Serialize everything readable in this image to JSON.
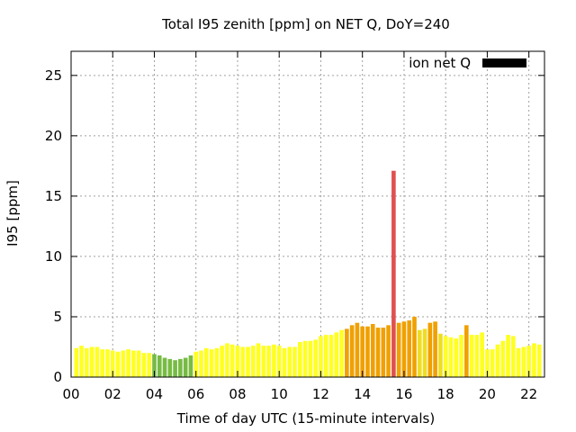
{
  "chart_data": {
    "type": "bar",
    "title": "Total I95 zenith [ppm] on NET Q, DoY=240",
    "xlabel": "Time of day UTC (15-minute intervals)",
    "ylabel": "I95 [ppm]",
    "legend": {
      "label": "ion net Q",
      "position": "top-right",
      "color": "#000000"
    },
    "grid": true,
    "xlim": [
      0,
      22.75
    ],
    "ylim": [
      0,
      27
    ],
    "x_ticks": [
      {
        "value": 0,
        "label": "00"
      },
      {
        "value": 2,
        "label": "02"
      },
      {
        "value": 4,
        "label": "04"
      },
      {
        "value": 6,
        "label": "06"
      },
      {
        "value": 8,
        "label": "08"
      },
      {
        "value": 10,
        "label": "10"
      },
      {
        "value": 12,
        "label": "12"
      },
      {
        "value": 14,
        "label": "14"
      },
      {
        "value": 16,
        "label": "16"
      },
      {
        "value": 18,
        "label": "18"
      },
      {
        "value": 20,
        "label": "20"
      },
      {
        "value": 22,
        "label": "22"
      }
    ],
    "y_ticks": [
      {
        "value": 0,
        "label": "0"
      },
      {
        "value": 5,
        "label": "5"
      },
      {
        "value": 10,
        "label": "10"
      },
      {
        "value": 15,
        "label": "15"
      },
      {
        "value": 20,
        "label": "20"
      },
      {
        "value": 25,
        "label": "25"
      }
    ],
    "colors": {
      "green": "#77bb44",
      "yellow": "#ffff22",
      "lightorange": "#eedd22",
      "orange": "#f0a000",
      "red": "#e05050"
    },
    "bar_interval_hours": 0.25,
    "bars": [
      {
        "x": 0.25,
        "value": 2.4,
        "color": "yellow"
      },
      {
        "x": 0.5,
        "value": 2.6,
        "color": "yellow"
      },
      {
        "x": 0.75,
        "value": 2.4,
        "color": "yellow"
      },
      {
        "x": 1.0,
        "value": 2.5,
        "color": "yellow"
      },
      {
        "x": 1.25,
        "value": 2.5,
        "color": "yellow"
      },
      {
        "x": 1.5,
        "value": 2.3,
        "color": "yellow"
      },
      {
        "x": 1.75,
        "value": 2.3,
        "color": "yellow"
      },
      {
        "x": 2.0,
        "value": 2.2,
        "color": "yellow"
      },
      {
        "x": 2.25,
        "value": 2.1,
        "color": "yellow"
      },
      {
        "x": 2.5,
        "value": 2.2,
        "color": "yellow"
      },
      {
        "x": 2.75,
        "value": 2.3,
        "color": "yellow"
      },
      {
        "x": 3.0,
        "value": 2.2,
        "color": "yellow"
      },
      {
        "x": 3.25,
        "value": 2.2,
        "color": "yellow"
      },
      {
        "x": 3.5,
        "value": 2.0,
        "color": "yellow"
      },
      {
        "x": 3.75,
        "value": 2.0,
        "color": "yellow"
      },
      {
        "x": 4.0,
        "value": 1.9,
        "color": "green"
      },
      {
        "x": 4.25,
        "value": 1.8,
        "color": "green"
      },
      {
        "x": 4.5,
        "value": 1.6,
        "color": "green"
      },
      {
        "x": 4.75,
        "value": 1.5,
        "color": "green"
      },
      {
        "x": 5.0,
        "value": 1.4,
        "color": "green"
      },
      {
        "x": 5.25,
        "value": 1.5,
        "color": "green"
      },
      {
        "x": 5.5,
        "value": 1.6,
        "color": "green"
      },
      {
        "x": 5.75,
        "value": 1.8,
        "color": "green"
      },
      {
        "x": 6.0,
        "value": 2.1,
        "color": "yellow"
      },
      {
        "x": 6.25,
        "value": 2.2,
        "color": "yellow"
      },
      {
        "x": 6.5,
        "value": 2.4,
        "color": "yellow"
      },
      {
        "x": 6.75,
        "value": 2.3,
        "color": "yellow"
      },
      {
        "x": 7.0,
        "value": 2.4,
        "color": "yellow"
      },
      {
        "x": 7.25,
        "value": 2.6,
        "color": "yellow"
      },
      {
        "x": 7.5,
        "value": 2.8,
        "color": "yellow"
      },
      {
        "x": 7.75,
        "value": 2.7,
        "color": "yellow"
      },
      {
        "x": 8.0,
        "value": 2.6,
        "color": "yellow"
      },
      {
        "x": 8.25,
        "value": 2.5,
        "color": "yellow"
      },
      {
        "x": 8.5,
        "value": 2.5,
        "color": "yellow"
      },
      {
        "x": 8.75,
        "value": 2.6,
        "color": "yellow"
      },
      {
        "x": 9.0,
        "value": 2.8,
        "color": "yellow"
      },
      {
        "x": 9.25,
        "value": 2.6,
        "color": "yellow"
      },
      {
        "x": 9.5,
        "value": 2.6,
        "color": "yellow"
      },
      {
        "x": 9.75,
        "value": 2.7,
        "color": "yellow"
      },
      {
        "x": 10.0,
        "value": 2.6,
        "color": "yellow"
      },
      {
        "x": 10.25,
        "value": 2.4,
        "color": "yellow"
      },
      {
        "x": 10.5,
        "value": 2.5,
        "color": "yellow"
      },
      {
        "x": 10.75,
        "value": 2.5,
        "color": "yellow"
      },
      {
        "x": 11.0,
        "value": 2.9,
        "color": "yellow"
      },
      {
        "x": 11.25,
        "value": 3.0,
        "color": "yellow"
      },
      {
        "x": 11.5,
        "value": 3.0,
        "color": "yellow"
      },
      {
        "x": 11.75,
        "value": 3.1,
        "color": "yellow"
      },
      {
        "x": 12.0,
        "value": 3.4,
        "color": "yellow"
      },
      {
        "x": 12.25,
        "value": 3.5,
        "color": "yellow"
      },
      {
        "x": 12.5,
        "value": 3.5,
        "color": "yellow"
      },
      {
        "x": 12.75,
        "value": 3.7,
        "color": "yellow"
      },
      {
        "x": 13.0,
        "value": 3.9,
        "color": "yellow"
      },
      {
        "x": 13.25,
        "value": 4.0,
        "color": "orange"
      },
      {
        "x": 13.5,
        "value": 4.3,
        "color": "orange"
      },
      {
        "x": 13.75,
        "value": 4.5,
        "color": "orange"
      },
      {
        "x": 14.0,
        "value": 4.2,
        "color": "orange"
      },
      {
        "x": 14.25,
        "value": 4.2,
        "color": "orange"
      },
      {
        "x": 14.5,
        "value": 4.4,
        "color": "orange"
      },
      {
        "x": 14.75,
        "value": 4.1,
        "color": "orange"
      },
      {
        "x": 15.0,
        "value": 4.1,
        "color": "orange"
      },
      {
        "x": 15.25,
        "value": 4.3,
        "color": "orange"
      },
      {
        "x": 15.5,
        "value": 17.1,
        "color": "red"
      },
      {
        "x": 15.75,
        "value": 4.5,
        "color": "orange"
      },
      {
        "x": 16.0,
        "value": 4.6,
        "color": "orange"
      },
      {
        "x": 16.25,
        "value": 4.7,
        "color": "orange"
      },
      {
        "x": 16.5,
        "value": 5.0,
        "color": "orange"
      },
      {
        "x": 16.75,
        "value": 3.9,
        "color": "lightorange"
      },
      {
        "x": 17.0,
        "value": 4.0,
        "color": "lightorange"
      },
      {
        "x": 17.25,
        "value": 4.5,
        "color": "orange"
      },
      {
        "x": 17.5,
        "value": 4.6,
        "color": "orange"
      },
      {
        "x": 17.75,
        "value": 3.6,
        "color": "lightorange"
      },
      {
        "x": 18.0,
        "value": 3.4,
        "color": "yellow"
      },
      {
        "x": 18.25,
        "value": 3.3,
        "color": "yellow"
      },
      {
        "x": 18.5,
        "value": 3.2,
        "color": "yellow"
      },
      {
        "x": 18.75,
        "value": 3.5,
        "color": "yellow"
      },
      {
        "x": 19.0,
        "value": 4.3,
        "color": "orange"
      },
      {
        "x": 19.25,
        "value": 3.5,
        "color": "yellow"
      },
      {
        "x": 19.5,
        "value": 3.5,
        "color": "yellow"
      },
      {
        "x": 19.75,
        "value": 3.7,
        "color": "yellow"
      },
      {
        "x": 20.0,
        "value": 2.3,
        "color": "yellow"
      },
      {
        "x": 20.25,
        "value": 2.3,
        "color": "yellow"
      },
      {
        "x": 20.5,
        "value": 2.7,
        "color": "yellow"
      },
      {
        "x": 20.75,
        "value": 3.0,
        "color": "yellow"
      },
      {
        "x": 21.0,
        "value": 3.5,
        "color": "yellow"
      },
      {
        "x": 21.25,
        "value": 3.4,
        "color": "yellow"
      },
      {
        "x": 21.5,
        "value": 2.4,
        "color": "yellow"
      },
      {
        "x": 21.75,
        "value": 2.5,
        "color": "yellow"
      },
      {
        "x": 22.0,
        "value": 2.6,
        "color": "yellow"
      },
      {
        "x": 22.25,
        "value": 2.8,
        "color": "yellow"
      },
      {
        "x": 22.5,
        "value": 2.7,
        "color": "yellow"
      }
    ]
  }
}
